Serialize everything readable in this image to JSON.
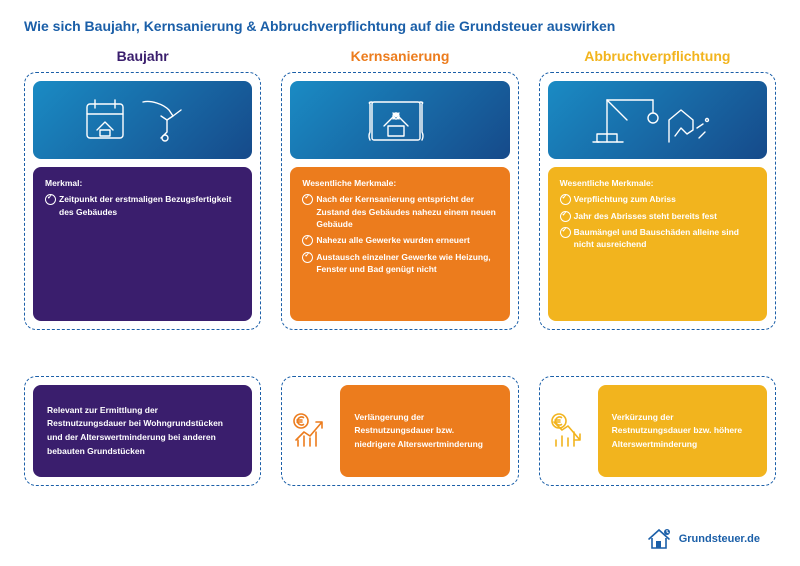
{
  "title": "Wie sich Baujahr, Kernsanierung & Abbruchverpflichtung auf die Grundsteuer auswirken",
  "title_color": "#1b5fa8",
  "gradient_from": "#1a8bc4",
  "gradient_to": "#164a8a",
  "columns": [
    {
      "heading": "Baujahr",
      "heading_color": "#3a1e6d",
      "accent": "#3a1e6d",
      "border": "#1b5fa8",
      "list_label": "Merkmal:",
      "items": [
        "Zeitpunkt der erstmaligen Bezugsfertigkeit des Gebäudes"
      ],
      "result": "Relevant zur Ermittlung der Restnutzungsdauer bei Wohngrundstücken und der Alterswertminderung bei anderen bebauten Grundstücken",
      "show_euro": false,
      "euro_up": false,
      "icon": "baujahr"
    },
    {
      "heading": "Kernsanierung",
      "heading_color": "#ec7c1d",
      "accent": "#ec7c1d",
      "border": "#1b5fa8",
      "list_label": "Wesentliche Merkmale:",
      "items": [
        "Nach der Kernsanierung entspricht der Zustand des Gebäudes nahezu einem neuen Gebäude",
        "Nahezu alle Gewerke wurden erneuert",
        "Austausch einzelner Gewerke wie Heizung, Fenster und Bad genügt nicht"
      ],
      "result": "Verlängerung der Restnutzungsdauer bzw. niedrigere Alterswertminderung",
      "show_euro": true,
      "euro_up": true,
      "icon": "kernsanierung"
    },
    {
      "heading": "Abbruchverpflichtung",
      "heading_color": "#f2b41e",
      "accent": "#f2b41e",
      "border": "#1b5fa8",
      "list_label": "Wesentliche Merkmale:",
      "items": [
        "Verpflichtung zum Abriss",
        "Jahr des Abrisses steht bereits fest",
        "Baumängel und Bauschäden alleine sind nicht ausreichend"
      ],
      "result": "Verkürzung der Restnutzungsdauer bzw. höhere Alterswertminderung",
      "show_euro": true,
      "euro_up": false,
      "icon": "abbruch"
    }
  ],
  "footer": {
    "text": "Grundsteuer.de",
    "color": "#1b5fa8"
  }
}
